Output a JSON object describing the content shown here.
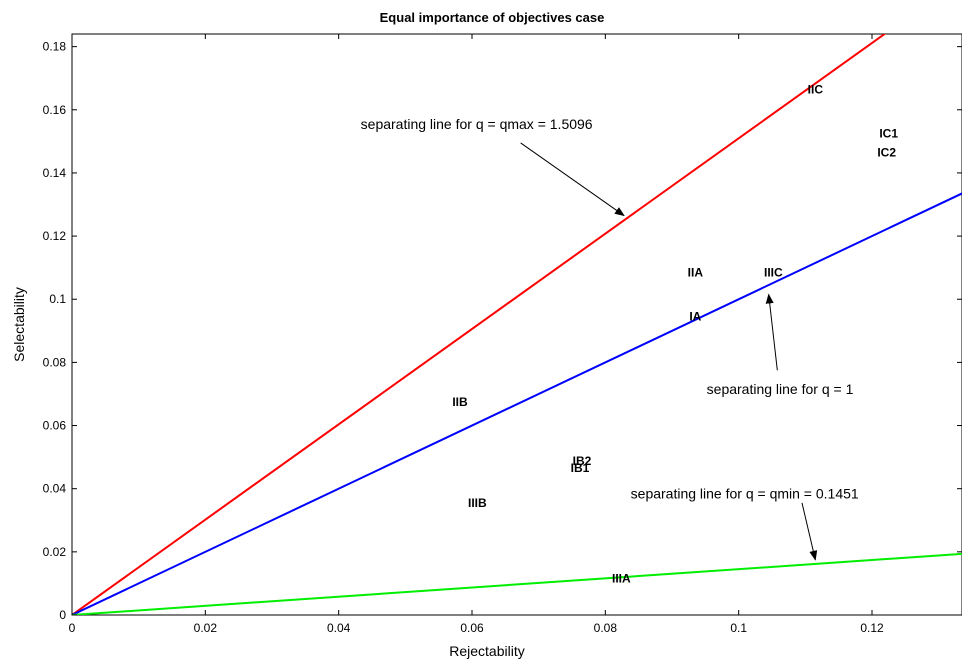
{
  "chart_data": {
    "type": "line",
    "title": "Equal importance of objectives case",
    "xlabel": "Rejectability",
    "ylabel": "Selectability",
    "xlim": [
      0,
      0.1335
    ],
    "ylim": [
      0,
      0.184
    ],
    "xticks": [
      0,
      0.02,
      0.04,
      0.06,
      0.08,
      0.1,
      0.12
    ],
    "xtick_labels": [
      "0",
      "0.02",
      "0.04",
      "0.06",
      "0.08",
      "0.1",
      "0.12"
    ],
    "yticks": [
      0,
      0.02,
      0.04,
      0.06,
      0.08,
      0.1,
      0.12,
      0.14,
      0.16,
      0.18
    ],
    "ytick_labels": [
      "0",
      "0.02",
      "0.04",
      "0.06",
      "0.08",
      "0.1",
      "0.12",
      "0.14",
      "0.16",
      "0.18"
    ],
    "grid": false,
    "series": [
      {
        "slope": 1.5096,
        "color": "#ff0000"
      },
      {
        "slope": 1.0,
        "color": "#0000ff"
      },
      {
        "slope": 0.1451,
        "color": "#00ee00"
      }
    ],
    "points": [
      {
        "label": "IIC",
        "x": 0.1115,
        "y": 0.1665
      },
      {
        "label": "IC1",
        "x": 0.1225,
        "y": 0.1525
      },
      {
        "label": "IC2",
        "x": 0.1222,
        "y": 0.1465
      },
      {
        "label": "IIA",
        "x": 0.0935,
        "y": 0.1085
      },
      {
        "label": "IIIC",
        "x": 0.1052,
        "y": 0.1085
      },
      {
        "label": "IA",
        "x": 0.0935,
        "y": 0.0945
      },
      {
        "label": "IIB",
        "x": 0.0582,
        "y": 0.0675
      },
      {
        "label": "IB2",
        "x": 0.0765,
        "y": 0.0488
      },
      {
        "label": "IB1",
        "x": 0.0762,
        "y": 0.0465
      },
      {
        "label": "IIIB",
        "x": 0.0608,
        "y": 0.0355
      },
      {
        "label": "IIIA",
        "x": 0.0824,
        "y": 0.0115
      }
    ],
    "annotations": [
      {
        "text": "separating line for q = qmax = 1.5096",
        "text_x": 0.0433,
        "text_y": 0.1555,
        "arrow_from": [
          0.0673,
          0.1495
        ],
        "arrow_to": [
          0.0828,
          0.1265
        ]
      },
      {
        "text": "separating line for q = 1",
        "text_x": 0.0952,
        "text_y": 0.0715,
        "arrow_from": [
          0.1058,
          0.0775
        ],
        "arrow_to": [
          0.1045,
          0.1015
        ]
      },
      {
        "text": "separating line for q = qmin = 0.1451",
        "text_x": 0.0838,
        "text_y": 0.0385,
        "arrow_from": [
          0.1095,
          0.0355
        ],
        "arrow_to": [
          0.1115,
          0.0175
        ]
      }
    ]
  }
}
